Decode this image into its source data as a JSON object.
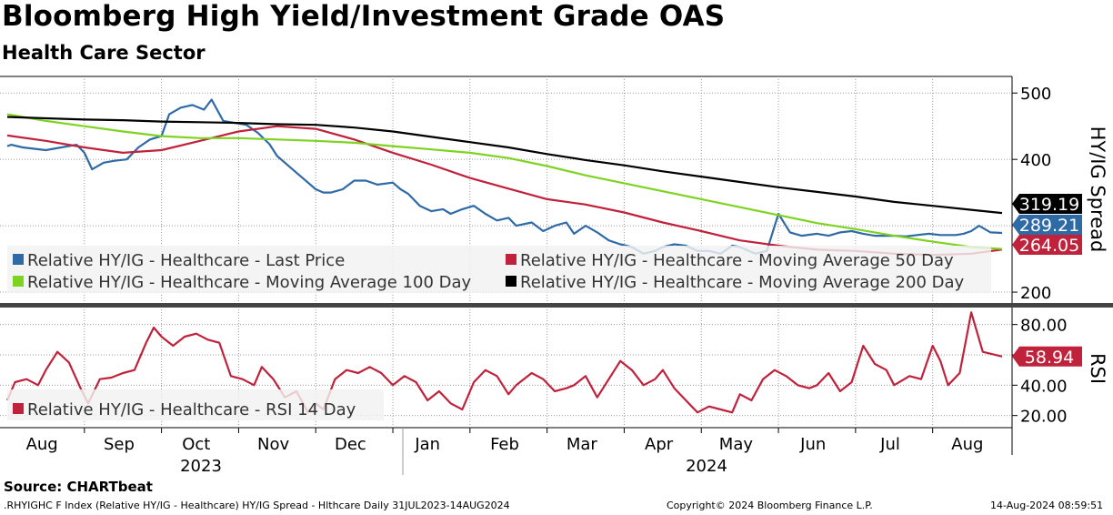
{
  "title": "Bloomberg High Yield/Investment Grade OAS",
  "subtitle": "Health Care Sector",
  "source": "Source: CHARTbeat",
  "footer": {
    "index_desc": ".RHYIGHC F Index (Relative HY/IG - Healthcare) HY/IG Spread - Hlthcare  Daily 31JUL2023-14AUG2024",
    "copyright": "Copyright© 2024 Bloomberg Finance L.P.",
    "timestamp": "14-Aug-2024 08:59:51"
  },
  "chart_data": [
    {
      "type": "line",
      "panel": "upper",
      "ylabel": "HY/IG Spread",
      "ylim": [
        185,
        525
      ],
      "y_ticks": [
        "500",
        "400",
        "200"
      ],
      "legend": [
        {
          "label": "Relative HY/IG - Healthcare - Last Price",
          "color": "#2e6aa6"
        },
        {
          "label": "Relative HY/IG - Healthcare - Moving Average 50 Day",
          "color": "#c0213b"
        },
        {
          "label": "Relative HY/IG - Healthcare - Moving Average 100 Day",
          "color": "#7ed321"
        },
        {
          "label": "Relative HY/IG - Healthcare - Moving Average 200 Day",
          "color": "#000000"
        }
      ],
      "last_values": [
        {
          "label": "319.19",
          "value": 319.19,
          "color": "#000000"
        },
        {
          "label": "289.21",
          "value": 289.21,
          "color": "#2e6aa6"
        },
        {
          "label": "264.05",
          "value": 264.05,
          "color": "#c0213b"
        }
      ],
      "series": [
        {
          "name": "Last Price",
          "color": "#2e6aa6",
          "x": [
            0,
            0.05,
            0.2,
            0.35,
            0.5,
            0.7,
            0.9,
            1.0,
            1.1,
            1.25,
            1.4,
            1.55,
            1.7,
            1.85,
            2.0,
            2.1,
            2.25,
            2.4,
            2.55,
            2.65,
            2.8,
            2.95,
            3.1,
            3.25,
            3.4,
            3.5,
            3.6,
            3.75,
            3.85,
            4.0,
            4.1,
            4.2,
            4.35,
            4.5,
            4.65,
            4.8,
            5.0,
            5.1,
            5.2,
            5.35,
            5.5,
            5.65,
            5.75,
            5.9,
            6.05,
            6.2,
            6.35,
            6.5,
            6.6,
            6.8,
            6.95,
            7.1,
            7.25,
            7.35,
            7.5,
            7.65,
            7.8,
            7.95,
            8.1,
            8.25,
            8.4,
            8.5,
            8.65,
            8.8,
            8.95,
            9.1,
            9.25,
            9.4,
            9.5,
            9.7,
            9.85,
            10.0,
            10.15,
            10.3,
            10.5,
            10.65,
            10.8,
            10.95,
            11.1,
            11.25,
            11.5,
            11.65,
            11.8,
            11.95,
            12.1,
            12.3,
            12.4,
            12.5,
            12.6,
            12.75,
            12.9
          ],
          "values": [
            420,
            422,
            418,
            416,
            414,
            418,
            422,
            410,
            385,
            395,
            398,
            400,
            418,
            430,
            435,
            468,
            478,
            482,
            475,
            490,
            458,
            455,
            452,
            440,
            423,
            405,
            395,
            380,
            370,
            355,
            350,
            350,
            355,
            368,
            368,
            362,
            365,
            355,
            348,
            330,
            322,
            325,
            318,
            325,
            330,
            318,
            308,
            312,
            300,
            305,
            292,
            300,
            305,
            288,
            300,
            290,
            278,
            272,
            268,
            258,
            262,
            268,
            272,
            270,
            262,
            262,
            258,
            270,
            268,
            258,
            262,
            318,
            290,
            285,
            288,
            285,
            290,
            292,
            288,
            285,
            285,
            284,
            286,
            288,
            286,
            286,
            288,
            292,
            300,
            290,
            289.21
          ]
        },
        {
          "name": "Moving Average 50 Day",
          "color": "#c0213b",
          "x": [
            0,
            0.5,
            1.0,
            1.5,
            2.0,
            2.5,
            3.0,
            3.5,
            4.0,
            4.5,
            5.0,
            5.5,
            6.0,
            6.5,
            7.0,
            7.5,
            8.0,
            8.5,
            9.0,
            9.5,
            10.0,
            10.5,
            11.0,
            11.5,
            12.0,
            12.5,
            12.9
          ],
          "values": [
            436,
            428,
            418,
            410,
            414,
            428,
            442,
            450,
            446,
            430,
            410,
            392,
            372,
            356,
            340,
            332,
            320,
            305,
            292,
            278,
            270,
            264,
            262,
            258,
            256,
            258,
            264.05
          ]
        },
        {
          "name": "Moving Average 100 Day",
          "color": "#7ed321",
          "x": [
            0,
            0.5,
            1.0,
            1.5,
            2.0,
            2.5,
            3.0,
            3.5,
            4.0,
            4.5,
            5.0,
            5.5,
            6.0,
            6.5,
            7.0,
            7.5,
            8.0,
            8.5,
            9.0,
            9.5,
            10.0,
            10.5,
            11.0,
            11.5,
            12.0,
            12.5,
            12.9
          ],
          "values": [
            468,
            458,
            450,
            442,
            435,
            432,
            432,
            430,
            428,
            425,
            420,
            415,
            410,
            402,
            390,
            376,
            364,
            352,
            340,
            328,
            316,
            304,
            295,
            285,
            276,
            268,
            265
          ]
        },
        {
          "name": "Moving Average 200 Day",
          "color": "#000000",
          "x": [
            0,
            0.5,
            1.0,
            1.5,
            2.0,
            2.5,
            3.0,
            3.5,
            4.0,
            4.5,
            5.0,
            5.5,
            6.0,
            6.5,
            7.0,
            7.5,
            8.0,
            8.5,
            9.0,
            9.5,
            10.0,
            10.5,
            11.0,
            11.5,
            12.0,
            12.5,
            12.9
          ],
          "values": [
            464,
            462,
            460,
            459,
            457,
            456,
            455,
            453,
            452,
            448,
            442,
            434,
            426,
            418,
            408,
            399,
            391,
            382,
            374,
            366,
            358,
            351,
            344,
            336,
            330,
            324,
            319.19
          ]
        }
      ]
    },
    {
      "type": "line",
      "panel": "lower",
      "ylabel": "RSI",
      "ylim": [
        12,
        90
      ],
      "y_ticks": [
        "80.00",
        "40.00",
        "20.00"
      ],
      "legend": [
        {
          "label": "Relative HY/IG - Healthcare - RSI 14 Day",
          "color": "#c0213b"
        }
      ],
      "last_values": [
        {
          "label": "58.94",
          "value": 58.94,
          "color": "#c0213b"
        }
      ],
      "series": [
        {
          "name": "RSI 14 Day",
          "color": "#c0213b",
          "x": [
            0,
            0.1,
            0.25,
            0.4,
            0.5,
            0.65,
            0.8,
            0.95,
            1.05,
            1.2,
            1.35,
            1.5,
            1.65,
            1.8,
            1.9,
            2.0,
            2.15,
            2.3,
            2.45,
            2.6,
            2.75,
            2.9,
            3.05,
            3.2,
            3.3,
            3.45,
            3.6,
            3.75,
            3.9,
            4.0,
            4.1,
            4.25,
            4.4,
            4.55,
            4.7,
            4.85,
            5.0,
            5.15,
            5.3,
            5.45,
            5.6,
            5.75,
            5.9,
            6.05,
            6.2,
            6.35,
            6.5,
            6.6,
            6.8,
            6.95,
            7.1,
            7.25,
            7.35,
            7.5,
            7.65,
            7.8,
            7.95,
            8.1,
            8.25,
            8.4,
            8.5,
            8.65,
            8.8,
            8.95,
            9.1,
            9.25,
            9.4,
            9.5,
            9.65,
            9.8,
            9.95,
            10.1,
            10.25,
            10.4,
            10.5,
            10.65,
            10.8,
            10.95,
            11.1,
            11.25,
            11.4,
            11.5,
            11.7,
            11.85,
            12.0,
            12.1,
            12.2,
            12.35,
            12.5,
            12.65,
            12.9
          ],
          "values": [
            30,
            42,
            44,
            40,
            50,
            62,
            55,
            38,
            28,
            44,
            45,
            48,
            50,
            68,
            78,
            72,
            66,
            72,
            74,
            70,
            68,
            46,
            44,
            40,
            52,
            44,
            32,
            36,
            22,
            28,
            24,
            44,
            50,
            48,
            52,
            48,
            40,
            46,
            42,
            30,
            36,
            28,
            24,
            42,
            50,
            46,
            34,
            40,
            48,
            44,
            36,
            38,
            40,
            46,
            32,
            44,
            56,
            50,
            40,
            44,
            50,
            38,
            30,
            22,
            26,
            24,
            22,
            34,
            30,
            44,
            50,
            46,
            40,
            38,
            40,
            48,
            36,
            42,
            66,
            54,
            50,
            40,
            46,
            44,
            66,
            56,
            40,
            48,
            88,
            62,
            58.94
          ]
        }
      ]
    }
  ],
  "x_axis": {
    "months": [
      "Aug",
      "Sep",
      "Oct",
      "Nov",
      "Dec",
      "Jan",
      "Feb",
      "Mar",
      "Apr",
      "May",
      "Jun",
      "Jul",
      "Aug"
    ],
    "years": [
      "2023",
      "2024"
    ]
  }
}
